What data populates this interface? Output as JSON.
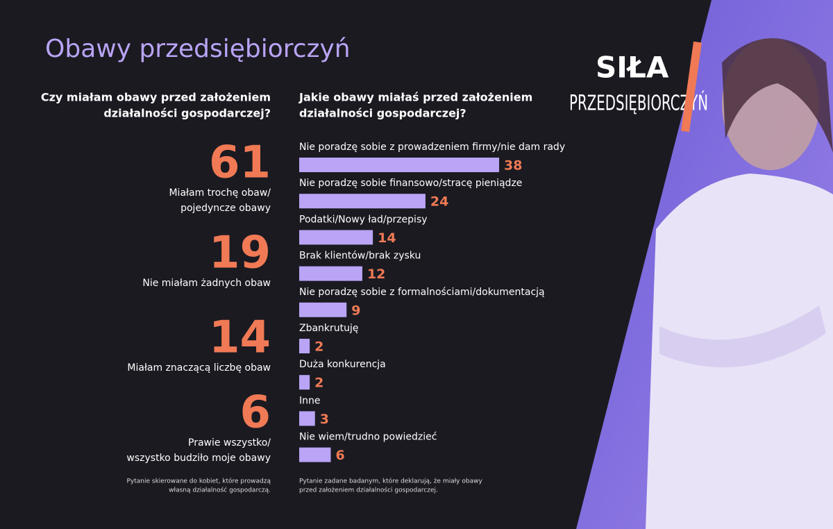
{
  "title": "Obawy przedsiębiorczyń",
  "logo": {
    "line1": "SIŁA",
    "line2": "PRZEDSIĘBIORCZYŃ"
  },
  "left_panel": {
    "heading": [
      "Czy miałam obawy przed założeniem",
      "działalności gospodarczej?"
    ],
    "items": [
      {
        "value": 61,
        "label": [
          "Miałam trochę obaw/",
          "pojedyncze obawy"
        ]
      },
      {
        "value": 19,
        "label": [
          "Nie miałam żadnych obaw"
        ]
      },
      {
        "value": 14,
        "label": [
          "Miałam znaczącą liczbę obaw"
        ]
      },
      {
        "value": 6,
        "label": [
          "Prawie wszystko/",
          "wszystko budziło moje obawy"
        ]
      }
    ],
    "footnote": [
      "Pytanie skierowane do kobiet, które prowadzą",
      "własną działalność gospodarczą."
    ]
  },
  "chart_data": {
    "type": "bar",
    "orientation": "horizontal",
    "title": [
      "Jakie obawy miałaś przed założeniem",
      "działalności gospodarczej?"
    ],
    "categories": [
      "Nie poradzę sobie z prowadzeniem firmy/nie dam rady",
      "Nie poradzę sobie finansowo/stracę pieniądze",
      "Podatki/Nowy ład/przepisy",
      "Brak klientów/brak zysku",
      "Nie poradzę sobie z formalnościami/dokumentacją",
      "Zbankrutuję",
      "Duża konkurencja",
      "Inne",
      "Nie wiem/trudno powiedzieć"
    ],
    "values": [
      38,
      24,
      14,
      12,
      9,
      2,
      2,
      3,
      6
    ],
    "color": "#b9a4f5",
    "label_color": "#f07a55",
    "footnote": [
      "Pytanie zadane badanym, które deklarują, że miały obawy",
      "przed założeniem działalności gospodarczej."
    ]
  }
}
